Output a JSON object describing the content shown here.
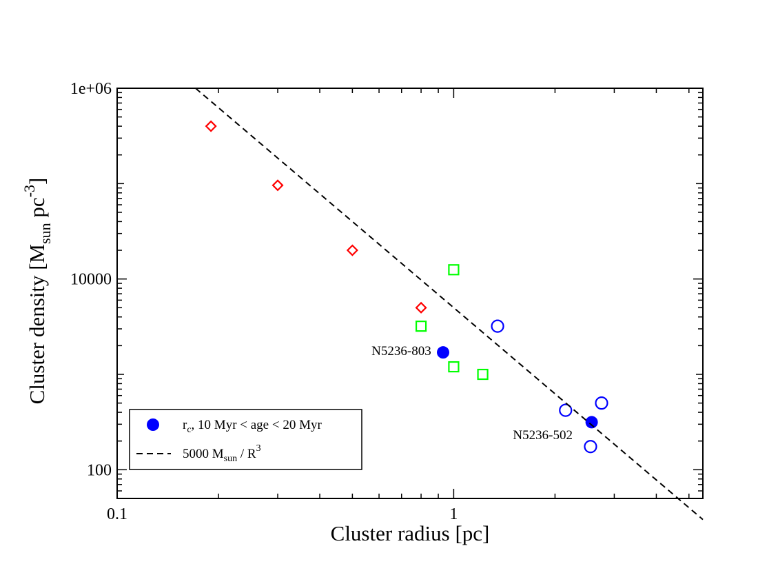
{
  "chart_data": {
    "type": "scatter",
    "title": "",
    "x_scale": "log",
    "y_scale": "log",
    "xlabel": "Cluster radius [pc]",
    "ylabel": {
      "main": "Cluster density [M",
      "sub": "sun",
      "mid": " pc",
      "sup": "-3",
      "end": "]"
    },
    "xlim": [
      0.1,
      5.5
    ],
    "ylim": [
      50,
      1000000
    ],
    "x_tick_labels": [
      {
        "value": 0.1,
        "label": "0.1"
      },
      {
        "value": 1,
        "label": "1"
      }
    ],
    "y_tick_labels": [
      {
        "value": 100,
        "label": "100"
      },
      {
        "value": 10000,
        "label": "10000"
      },
      {
        "value": 1000000,
        "label": "1e+06"
      }
    ],
    "series": [
      {
        "name": "red diamonds",
        "marker": "diamond-open",
        "color": "#ff0000",
        "points": [
          {
            "x": 0.19,
            "y": 400000
          },
          {
            "x": 0.3,
            "y": 96000
          },
          {
            "x": 0.5,
            "y": 20000
          },
          {
            "x": 0.8,
            "y": 5000
          }
        ]
      },
      {
        "name": "green squares",
        "marker": "square-open",
        "color": "#00ff00",
        "points": [
          {
            "x": 1.0,
            "y": 12500
          },
          {
            "x": 0.8,
            "y": 3200
          },
          {
            "x": 1.0,
            "y": 1200
          },
          {
            "x": 1.22,
            "y": 1000
          }
        ]
      },
      {
        "name": "blue open circles",
        "marker": "circle-open",
        "color": "#0000ff",
        "points": [
          {
            "x": 1.35,
            "y": 3200
          },
          {
            "x": 2.15,
            "y": 420
          },
          {
            "x": 2.75,
            "y": 500
          },
          {
            "x": 2.55,
            "y": 175
          }
        ]
      },
      {
        "name": "r_c, 10 Myr < age < 20 Myr",
        "marker": "circle-filled",
        "color": "#0000ff",
        "points": [
          {
            "x": 0.93,
            "y": 1700
          },
          {
            "x": 2.57,
            "y": 315
          }
        ]
      },
      {
        "name": "5000 M_sun / R^3",
        "marker": "dashed-line",
        "color": "#000000",
        "formula": "5000 / x^3",
        "x_range": [
          0.171,
          5.5
        ]
      }
    ],
    "annotations": [
      {
        "text": "N5236-803",
        "x": 0.57,
        "y": 1600
      },
      {
        "text": "N5236-502",
        "x": 1.5,
        "y": 210
      }
    ],
    "legend": {
      "position": "bottom-left",
      "entries": [
        {
          "marker": "circle-filled",
          "color": "#0000ff",
          "label_main": "r",
          "label_sub": "c",
          "label_rest": ", 10 Myr < age < 20 Myr"
        },
        {
          "marker": "dashed-line",
          "color": "#000000",
          "label_main": "5000 M",
          "label_sub": "sun",
          "label_rest": " / R",
          "label_sup": "3"
        }
      ]
    },
    "grid": false
  }
}
